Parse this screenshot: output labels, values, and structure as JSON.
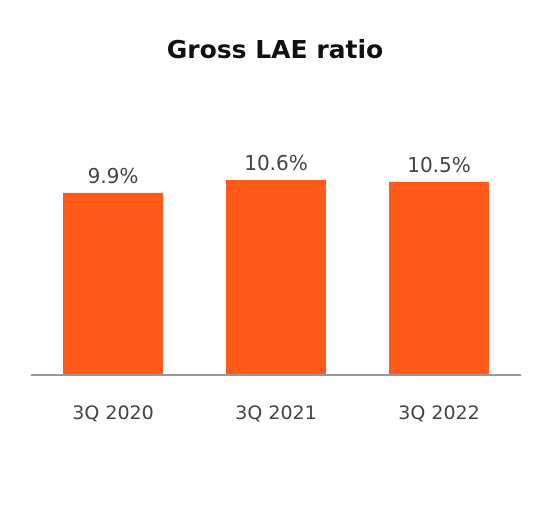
{
  "colors": {
    "bar": "#ff5a19",
    "axis": "#999999",
    "text": "#444444",
    "title": "#111111"
  },
  "chart_data": {
    "type": "bar",
    "title": "Gross LAE ratio",
    "xlabel": "",
    "ylabel": "",
    "categories": [
      "3Q 2020",
      "3Q 2021",
      "3Q 2022"
    ],
    "values": [
      9.9,
      10.6,
      10.5
    ],
    "data_labels": [
      "9.9%",
      "10.6%",
      "10.5%"
    ],
    "ylim": [
      0,
      10.6
    ],
    "grid": false,
    "legend": "none"
  }
}
